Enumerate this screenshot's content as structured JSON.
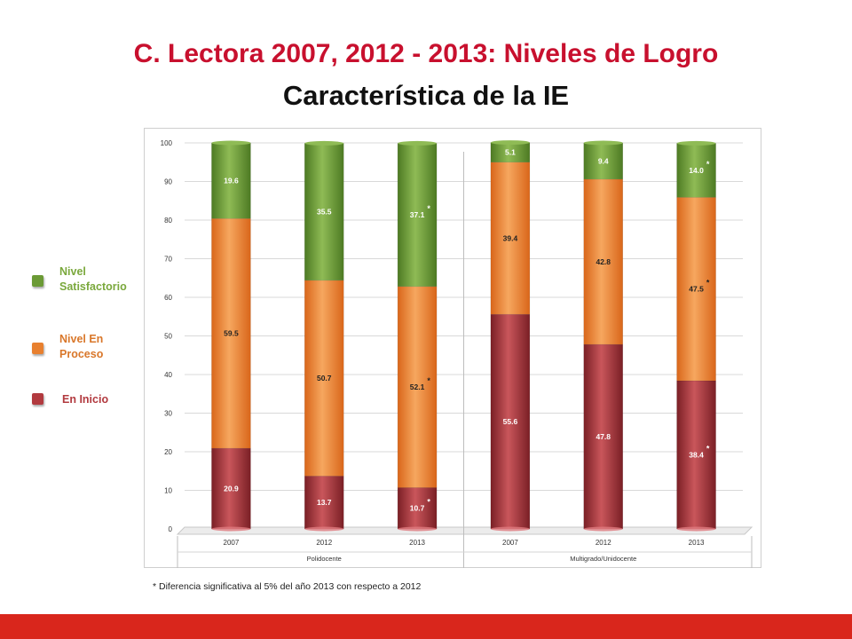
{
  "title": "C. Lectora 2007, 2012 - 2013: Niveles de Logro",
  "subtitle": "Característica de la IE",
  "footnote": "* Diferencia significativa al 5% del año 2013 con respecto a 2012",
  "legend": [
    {
      "label": "Nivel Satisfactorio",
      "color": "#6b9a35",
      "text_color": "#7aa83c"
    },
    {
      "label": "Nivel En Proceso",
      "color": "#e8802f",
      "text_color": "#d9772a"
    },
    {
      "label": "En Inicio",
      "color": "#b23a3f",
      "text_color": "#b23a3f"
    }
  ],
  "colors": {
    "satisfactorio": "#6b9a35",
    "proceso": "#ee8a3a",
    "inicio": "#b23a3f",
    "bottom_bar": "#d9261c"
  },
  "chart_data": {
    "type": "bar",
    "stacked": true,
    "ylim": [
      0,
      100
    ],
    "yticks": [
      0,
      10,
      20,
      30,
      40,
      50,
      60,
      70,
      80,
      90,
      100
    ],
    "categories": [
      "2007",
      "2012",
      "2013",
      "2007",
      "2012",
      "2013"
    ],
    "groups": [
      {
        "label": "Polidocente",
        "categories": [
          "2007",
          "2012",
          "2013"
        ]
      },
      {
        "label": "Multigrado/Unidocente",
        "categories": [
          "2007",
          "2012",
          "2013"
        ]
      }
    ],
    "series": [
      {
        "name": "En Inicio",
        "values": [
          20.9,
          13.7,
          10.7,
          55.6,
          47.8,
          38.4
        ],
        "labels": [
          "20.9",
          "13.7",
          "10.7",
          "55.6",
          "47.8",
          "38.4"
        ],
        "significant": [
          false,
          false,
          true,
          false,
          false,
          true
        ]
      },
      {
        "name": "Nivel En Proceso",
        "values": [
          59.5,
          50.7,
          52.1,
          39.4,
          42.8,
          47.5
        ],
        "labels": [
          "59.5",
          "50.7",
          "52.1",
          "39.4",
          "42.8",
          "47.5"
        ],
        "significant": [
          false,
          false,
          true,
          false,
          false,
          true
        ]
      },
      {
        "name": "Nivel Satisfactorio",
        "values": [
          19.6,
          35.5,
          37.1,
          5.1,
          9.4,
          14.0
        ],
        "labels": [
          "19.6",
          "35.5",
          "37.1",
          "5.1",
          "9.4",
          "14.0"
        ],
        "significant": [
          false,
          false,
          true,
          false,
          false,
          true
        ]
      }
    ],
    "significance_marker": "*",
    "grid": true
  }
}
